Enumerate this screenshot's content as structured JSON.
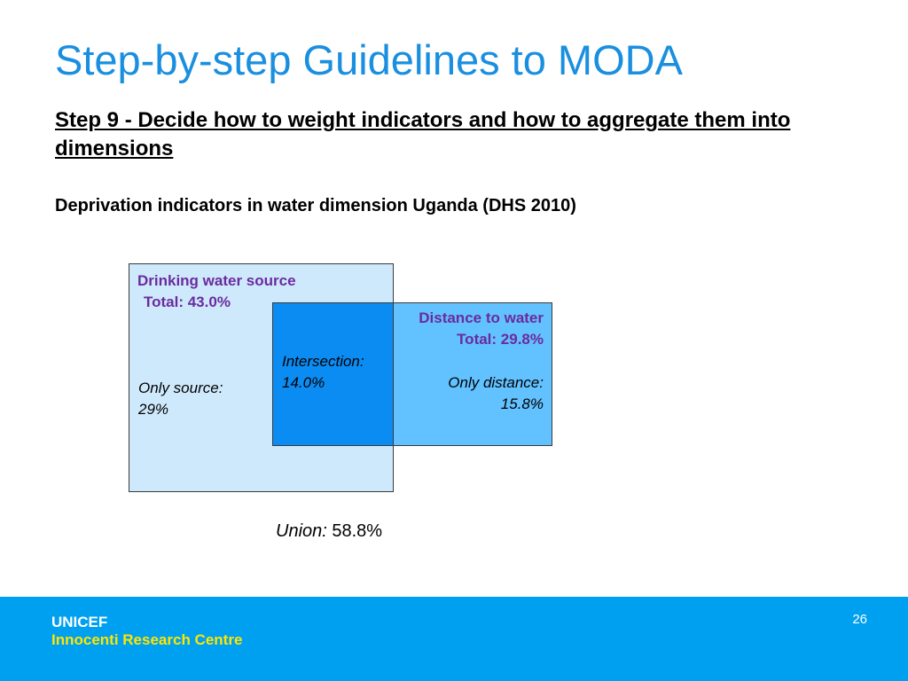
{
  "slide": {
    "title": "Step-by-step Guidelines to MODA",
    "step_heading": "Step 9 - Decide how to weight indicators and how to aggregate them into dimensions",
    "subheading": "Deprivation indicators in water dimension Uganda (DHS 2010)"
  },
  "diagram": {
    "source": {
      "title": "Drinking water source",
      "total": "Total: 43.0%",
      "only_label": "Only  source:",
      "only_value": "29%"
    },
    "distance": {
      "title": "Distance to water",
      "total": "Total:  29.8%",
      "only_label": "Only distance:",
      "only_value": "15.8%"
    },
    "intersection": {
      "label": "Intersection:",
      "value": "14.0%"
    },
    "union": {
      "label": "Union:",
      "value": "58.8%"
    },
    "colors": {
      "source_fill": "#cfe9fc",
      "distance_fill": "#62c1ff",
      "intersection_fill": "#0b8cf3",
      "label_color": "#6a2ba0"
    }
  },
  "footer": {
    "org": "UNICEF",
    "centre": "Innocenti Research Centre",
    "page_number": "26"
  }
}
